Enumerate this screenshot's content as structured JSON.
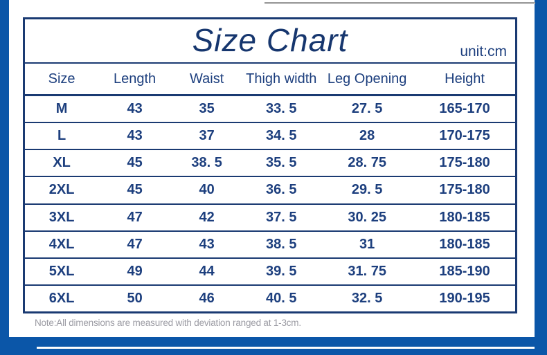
{
  "page": {
    "title": "Size Chart",
    "unit_label": "unit:cm",
    "note": "Note:All dimensions are measured with deviation ranged at 1-3cm."
  },
  "colors": {
    "background_blue": "#0b56a8",
    "table_border_navy": "#1a3a72",
    "text_navy": "#1d3f7e",
    "title_navy": "#16366e",
    "note_gray": "#9b9ba3",
    "top_divider_gray": "#8f8f8f",
    "bottom_line_white": "#fdfdfd"
  },
  "table": {
    "columns": [
      "Size",
      "Length",
      "Waist",
      "Thigh width",
      "Leg Opening",
      "Height"
    ],
    "rows": [
      [
        "M",
        "43",
        "35",
        "33. 5",
        "27. 5",
        "165-170"
      ],
      [
        "L",
        "43",
        "37",
        "34. 5",
        "28",
        "170-175"
      ],
      [
        "XL",
        "45",
        "38. 5",
        "35. 5",
        "28. 75",
        "175-180"
      ],
      [
        "2XL",
        "45",
        "40",
        "36. 5",
        "29. 5",
        "175-180"
      ],
      [
        "3XL",
        "47",
        "42",
        "37. 5",
        "30. 25",
        "180-185"
      ],
      [
        "4XL",
        "47",
        "43",
        "38. 5",
        "31",
        "180-185"
      ],
      [
        "5XL",
        "49",
        "44",
        "39. 5",
        "31. 75",
        "185-190"
      ],
      [
        "6XL",
        "50",
        "46",
        "40. 5",
        "32. 5",
        "190-195"
      ]
    ]
  },
  "chart_data": {
    "type": "table",
    "title": "Size Chart",
    "unit": "cm",
    "columns": [
      "Size",
      "Length",
      "Waist",
      "Thigh width",
      "Leg Opening",
      "Height"
    ],
    "rows": [
      [
        "M",
        "43",
        "35",
        "33. 5",
        "27. 5",
        "165-170"
      ],
      [
        "L",
        "43",
        "37",
        "34. 5",
        "28",
        "170-175"
      ],
      [
        "XL",
        "45",
        "38. 5",
        "35. 5",
        "28. 75",
        "175-180"
      ],
      [
        "2XL",
        "45",
        "40",
        "36. 5",
        "29. 5",
        "175-180"
      ],
      [
        "3XL",
        "47",
        "42",
        "37. 5",
        "30. 25",
        "180-185"
      ],
      [
        "4XL",
        "47",
        "43",
        "38. 5",
        "31",
        "180-185"
      ],
      [
        "5XL",
        "49",
        "44",
        "39. 5",
        "31. 75",
        "185-190"
      ],
      [
        "6XL",
        "50",
        "46",
        "40. 5",
        "32. 5",
        "190-195"
      ]
    ],
    "note": "Note:All dimensions are measured with deviation ranged at 1-3cm."
  }
}
